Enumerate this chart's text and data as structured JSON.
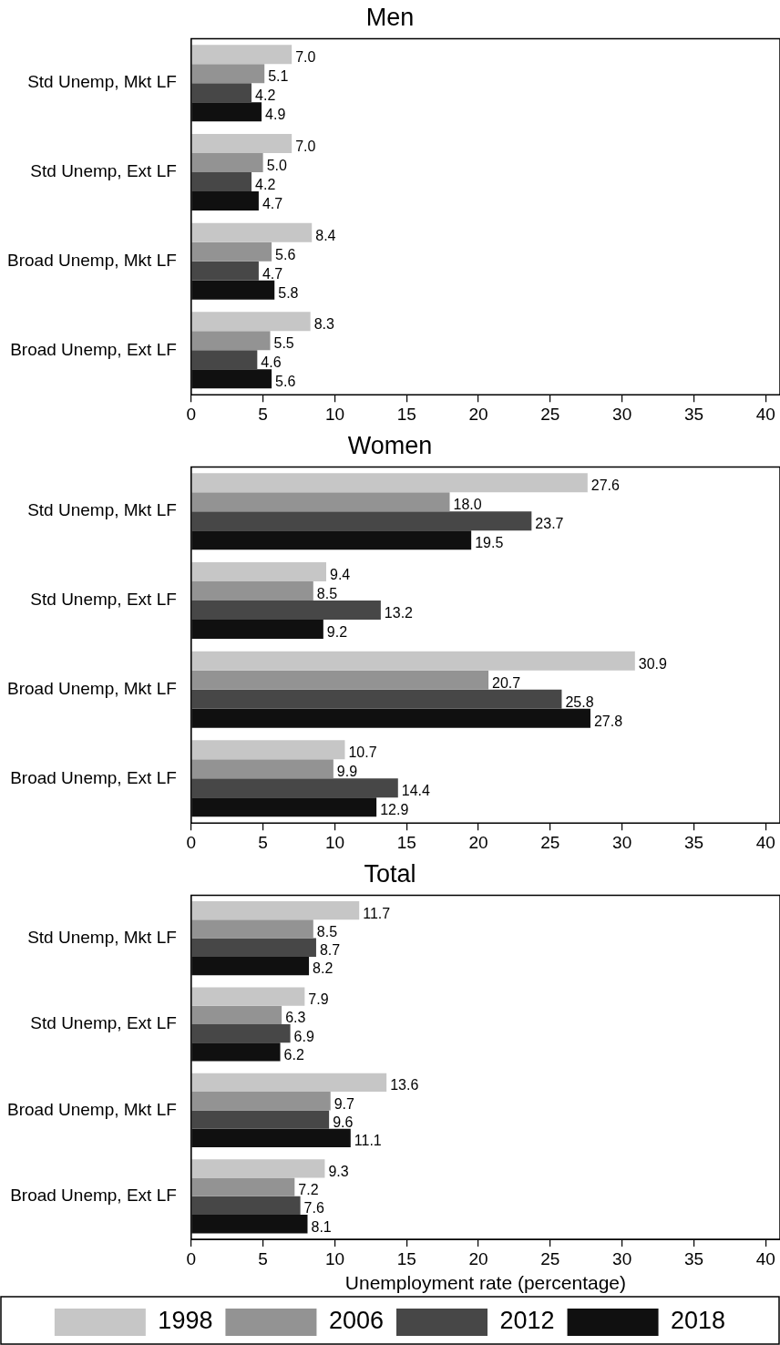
{
  "chart_data": [
    {
      "type": "bar",
      "orientation": "horizontal",
      "title": "Men",
      "categories": [
        "Std Unemp, Mkt LF",
        "Std Unemp, Ext LF",
        "Broad Unemp, Mkt LF",
        "Broad Unemp, Ext LF"
      ],
      "series": [
        {
          "color": "#c6c6c6",
          "values": [
            7.0,
            7.0,
            8.4,
            8.3
          ],
          "value_labels": [
            "7.0",
            "7.0",
            "8.4",
            "8.3"
          ]
        },
        {
          "color": "#939393",
          "values": [
            5.1,
            5.0,
            5.6,
            5.5
          ],
          "value_labels": [
            "5.1",
            "5.0",
            "5.6",
            "5.5"
          ]
        },
        {
          "color": "#474747",
          "values": [
            4.2,
            4.2,
            4.7,
            4.6
          ],
          "value_labels": [
            "4.2",
            "4.2",
            "4.7",
            "4.6"
          ]
        },
        {
          "color": "#101010",
          "values": [
            4.9,
            4.7,
            5.8,
            5.6
          ],
          "value_labels": [
            "4.9",
            "4.7",
            "5.8",
            "5.6"
          ]
        }
      ],
      "xlim": [
        0,
        41
      ],
      "xticks": [
        0,
        5,
        10,
        15,
        20,
        25,
        30,
        35,
        40
      ],
      "grid": false
    },
    {
      "type": "bar",
      "orientation": "horizontal",
      "title": "Women",
      "categories": [
        "Std Unemp, Mkt LF",
        "Std Unemp, Ext LF",
        "Broad Unemp, Mkt LF",
        "Broad Unemp, Ext LF"
      ],
      "series": [
        {
          "color": "#c6c6c6",
          "values": [
            27.6,
            9.4,
            30.9,
            10.7
          ],
          "value_labels": [
            "27.6",
            "9.4",
            "30.9",
            "10.7"
          ]
        },
        {
          "color": "#939393",
          "values": [
            18.0,
            8.5,
            20.7,
            9.9
          ],
          "value_labels": [
            "18.0",
            "8.5",
            "20.7",
            "9.9"
          ]
        },
        {
          "color": "#474747",
          "values": [
            23.7,
            13.2,
            25.8,
            14.4
          ],
          "value_labels": [
            "23.7",
            "13.2",
            "25.8",
            "14.4"
          ]
        },
        {
          "color": "#101010",
          "values": [
            19.5,
            9.2,
            27.8,
            12.9
          ],
          "value_labels": [
            "19.5",
            "9.2",
            "27.8",
            "12.9"
          ]
        }
      ],
      "xlim": [
        0,
        41
      ],
      "xticks": [
        0,
        5,
        10,
        15,
        20,
        25,
        30,
        35,
        40
      ],
      "grid": false
    },
    {
      "type": "bar",
      "orientation": "horizontal",
      "title": "Total",
      "xlabel": "Unemployment rate (percentage)",
      "categories": [
        "Std Unemp, Mkt LF",
        "Std Unemp, Ext LF",
        "Broad Unemp, Mkt LF",
        "Broad Unemp, Ext LF"
      ],
      "series": [
        {
          "name": "1998",
          "color": "#c6c6c6",
          "values": [
            11.7,
            7.9,
            13.6,
            9.3
          ],
          "value_labels": [
            "11.7",
            "7.9",
            "13.6",
            "9.3"
          ]
        },
        {
          "name": "2006",
          "color": "#939393",
          "values": [
            8.5,
            6.3,
            9.7,
            7.2
          ],
          "value_labels": [
            "8.5",
            "6.3",
            "9.7",
            "7.2"
          ]
        },
        {
          "name": "2012",
          "color": "#474747",
          "values": [
            8.7,
            6.9,
            9.6,
            7.6
          ],
          "value_labels": [
            "8.7",
            "6.9",
            "9.6",
            "7.6"
          ]
        },
        {
          "name": "2018",
          "color": "#101010",
          "values": [
            8.2,
            6.2,
            11.1,
            8.1
          ],
          "value_labels": [
            "8.2",
            "6.2",
            "11.1",
            "8.1"
          ]
        }
      ],
      "xlim": [
        0,
        41
      ],
      "xticks": [
        0,
        5,
        10,
        15,
        20,
        25,
        30,
        35,
        40
      ],
      "grid": false,
      "legend": "bottom"
    }
  ]
}
